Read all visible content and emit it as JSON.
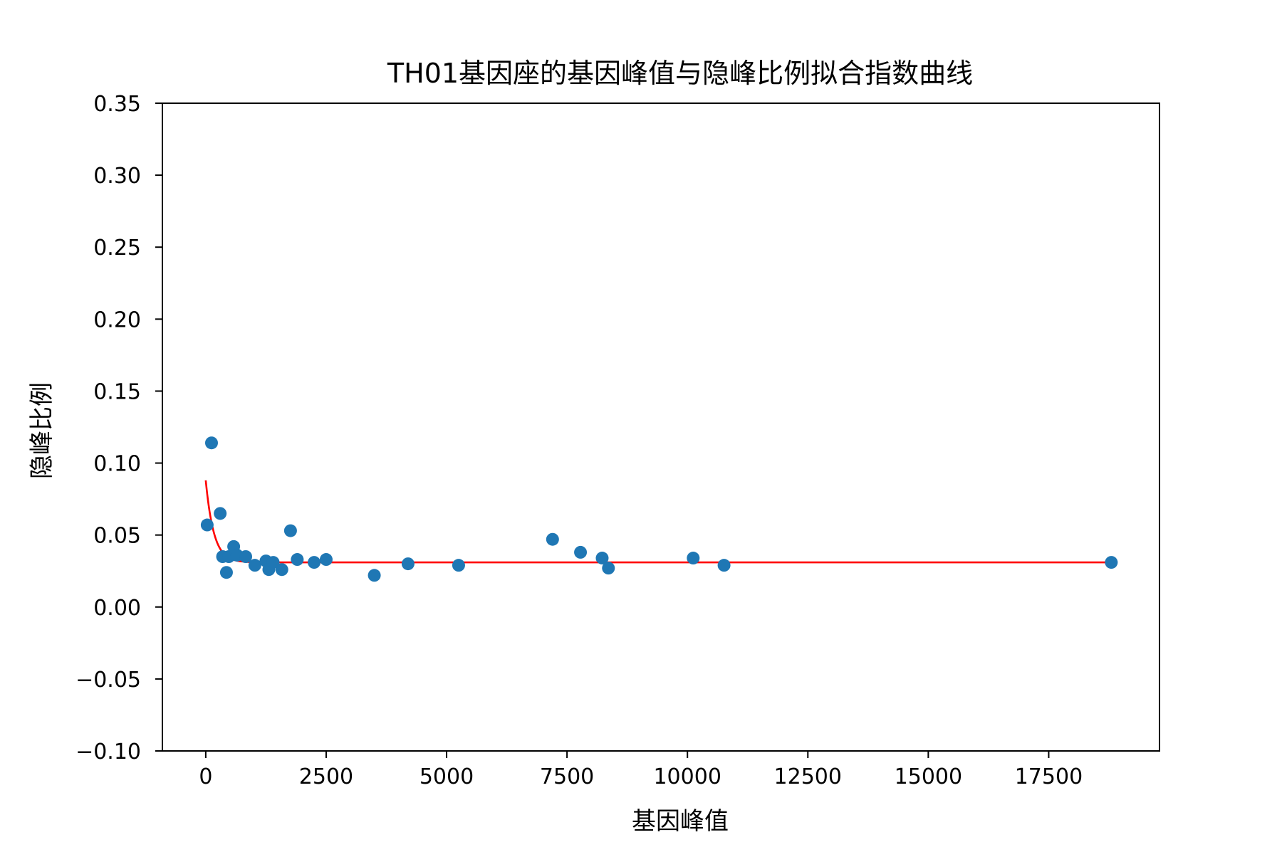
{
  "chart_data": {
    "type": "scatter",
    "title": "TH01基因座的基因峰值与隐峰比例拟合指数曲线",
    "xlabel": "基因峰值",
    "ylabel": "隐峰比例",
    "xlim": [
      -900,
      19800
    ],
    "ylim": [
      -0.1,
      0.35
    ],
    "x_ticks": [
      0,
      2500,
      5000,
      7500,
      10000,
      12500,
      15000,
      17500
    ],
    "x_tick_labels": [
      "0",
      "2500",
      "5000",
      "7500",
      "10000",
      "12500",
      "15000",
      "17500"
    ],
    "y_ticks": [
      -0.1,
      -0.05,
      0.0,
      0.05,
      0.1,
      0.15,
      0.2,
      0.25,
      0.3,
      0.35
    ],
    "y_tick_labels": [
      "−0.10",
      "−0.05",
      "0.00",
      "0.05",
      "0.10",
      "0.15",
      "0.20",
      "0.25",
      "0.30",
      "0.35"
    ],
    "grid": false,
    "legend": "none",
    "scatter": {
      "color": "#1f77b4",
      "points": [
        {
          "x": 30,
          "y": 0.057
        },
        {
          "x": 120,
          "y": 0.114
        },
        {
          "x": 300,
          "y": 0.065
        },
        {
          "x": 350,
          "y": 0.035
        },
        {
          "x": 430,
          "y": 0.024
        },
        {
          "x": 480,
          "y": 0.035
        },
        {
          "x": 580,
          "y": 0.042
        },
        {
          "x": 650,
          "y": 0.036
        },
        {
          "x": 830,
          "y": 0.035
        },
        {
          "x": 1020,
          "y": 0.029
        },
        {
          "x": 1250,
          "y": 0.032
        },
        {
          "x": 1310,
          "y": 0.026
        },
        {
          "x": 1400,
          "y": 0.031
        },
        {
          "x": 1580,
          "y": 0.026
        },
        {
          "x": 1760,
          "y": 0.053
        },
        {
          "x": 1900,
          "y": 0.033
        },
        {
          "x": 2250,
          "y": 0.031
        },
        {
          "x": 2500,
          "y": 0.033
        },
        {
          "x": 3500,
          "y": 0.022
        },
        {
          "x": 4200,
          "y": 0.03
        },
        {
          "x": 5250,
          "y": 0.029
        },
        {
          "x": 7200,
          "y": 0.047
        },
        {
          "x": 7780,
          "y": 0.038
        },
        {
          "x": 8230,
          "y": 0.034
        },
        {
          "x": 8360,
          "y": 0.027
        },
        {
          "x": 10120,
          "y": 0.034
        },
        {
          "x": 10760,
          "y": 0.029
        },
        {
          "x": 18800,
          "y": 0.031
        }
      ]
    },
    "fit_curve": {
      "type": "exponential",
      "color": "#ff0000",
      "x_range": [
        0,
        18800
      ],
      "asymptote": 0.031,
      "amplitude": 0.057,
      "decay_rate": 0.006
    }
  }
}
